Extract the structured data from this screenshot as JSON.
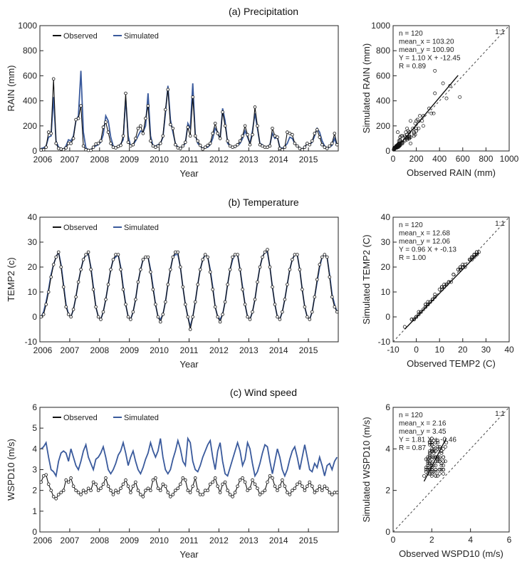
{
  "colors": {
    "observed": "#111111",
    "simulated": "#3a5a9c",
    "frame": "#222222"
  },
  "panels": [
    {
      "key": "a",
      "title": "(a) Precipitation",
      "legend": {
        "observed": "Observed",
        "simulated": "Simulated"
      },
      "ts": {
        "ylabel": "RAIN (mm)",
        "xlabel": "Year",
        "ylim": [
          0,
          1000
        ],
        "yticks": [
          0,
          200,
          400,
          600,
          800,
          1000
        ],
        "xticks": [
          "2006",
          "2007",
          "2008",
          "2009",
          "2010",
          "2011",
          "2012",
          "2013",
          "2014",
          "2015"
        ],
        "observed": [
          8,
          10,
          30,
          150,
          140,
          575,
          60,
          20,
          15,
          10,
          25,
          60,
          60,
          100,
          250,
          260,
          360,
          40,
          10,
          5,
          5,
          30,
          55,
          60,
          80,
          190,
          230,
          150,
          60,
          30,
          25,
          35,
          45,
          120,
          460,
          70,
          40,
          50,
          100,
          180,
          200,
          140,
          260,
          360,
          80,
          40,
          30,
          40,
          60,
          120,
          330,
          490,
          210,
          180,
          50,
          25,
          20,
          40,
          70,
          190,
          120,
          430,
          120,
          80,
          45,
          15,
          30,
          45,
          60,
          140,
          220,
          140,
          100,
          310,
          200,
          80,
          40,
          30,
          35,
          50,
          80,
          120,
          200,
          130,
          50,
          130,
          350,
          200,
          50,
          40,
          30,
          30,
          40,
          180,
          120,
          110,
          20,
          10,
          30,
          150,
          140,
          130,
          60,
          40,
          20,
          10,
          30,
          60,
          50,
          80,
          140,
          170,
          110,
          50,
          30,
          20,
          40,
          60,
          140,
          50
        ],
        "simulated": [
          20,
          25,
          40,
          110,
          120,
          430,
          80,
          30,
          20,
          15,
          40,
          90,
          80,
          120,
          240,
          280,
          640,
          150,
          25,
          10,
          10,
          30,
          40,
          50,
          70,
          130,
          280,
          240,
          110,
          40,
          30,
          40,
          55,
          90,
          420,
          120,
          40,
          50,
          80,
          120,
          160,
          150,
          200,
          460,
          120,
          40,
          40,
          50,
          60,
          110,
          300,
          520,
          250,
          150,
          60,
          30,
          25,
          40,
          60,
          220,
          180,
          540,
          130,
          60,
          40,
          20,
          25,
          30,
          50,
          100,
          180,
          150,
          90,
          340,
          240,
          60,
          40,
          25,
          30,
          45,
          60,
          100,
          160,
          110,
          60,
          160,
          300,
          180,
          60,
          50,
          30,
          35,
          50,
          140,
          100,
          110,
          30,
          20,
          35,
          60,
          110,
          100,
          60,
          40,
          25,
          15,
          30,
          60,
          50,
          70,
          120,
          180,
          150,
          80,
          40,
          25,
          30,
          45,
          100,
          40
        ]
      },
      "sc": {
        "xlabel": "Observed RAIN (mm)",
        "ylabel": "Simulated RAIN (mm)",
        "lim": [
          0,
          1000
        ],
        "ticks": [
          0,
          200,
          400,
          600,
          800,
          1000
        ],
        "stats": [
          "n = 120",
          "mean_x = 103.20",
          "mean_y = 100.90",
          "Y = 1.10 X + -12.45",
          "R = 0.89"
        ],
        "one_to_one": "1:1",
        "fit": {
          "slope": 1.1,
          "intercept": -12.45,
          "x_range": [
            10,
            560
          ]
        }
      }
    },
    {
      "key": "b",
      "title": "(b) Temperature",
      "legend": {
        "observed": "Observed",
        "simulated": "Simulated"
      },
      "ts": {
        "ylabel": "TEMP2 (c)",
        "xlabel": "Year",
        "ylim": [
          -10,
          40
        ],
        "yticks": [
          -10,
          0,
          10,
          20,
          30,
          40
        ],
        "xticks": [
          "2006",
          "2007",
          "2008",
          "2009",
          "2010",
          "2011",
          "2012",
          "2013",
          "2014",
          "2015"
        ],
        "observed": [
          0,
          1,
          5,
          10,
          16,
          21,
          24,
          26,
          20,
          12,
          4,
          1,
          0,
          3,
          8,
          14,
          19,
          23,
          25,
          26,
          19,
          11,
          4,
          0,
          -1,
          2,
          7,
          13,
          19,
          23,
          25,
          25,
          19,
          11,
          5,
          0,
          -1,
          2,
          7,
          14,
          19,
          23,
          24,
          24,
          18,
          11,
          5,
          0,
          -2,
          1,
          6,
          13,
          19,
          24,
          26,
          26,
          20,
          12,
          5,
          0,
          -5,
          0,
          6,
          13,
          19,
          23,
          25,
          24,
          18,
          11,
          4,
          0,
          -2,
          1,
          6,
          13,
          19,
          24,
          25,
          25,
          19,
          11,
          5,
          0,
          -1,
          2,
          7,
          14,
          20,
          24,
          26,
          27,
          20,
          12,
          5,
          0,
          -1,
          2,
          7,
          13,
          19,
          23,
          25,
          25,
          19,
          11,
          4,
          0,
          -1,
          2,
          8,
          15,
          21,
          24,
          25,
          24,
          16,
          8,
          4,
          2
        ],
        "simulated": [
          0,
          2,
          6,
          11,
          17,
          21,
          24,
          26,
          21,
          13,
          5,
          1,
          0,
          3,
          8,
          14,
          19,
          23,
          25,
          25,
          20,
          12,
          4,
          0,
          -1,
          2,
          7,
          13,
          19,
          23,
          24,
          25,
          20,
          12,
          5,
          0,
          -1,
          2,
          7,
          14,
          19,
          23,
          24,
          24,
          19,
          12,
          5,
          0,
          -1,
          1,
          6,
          13,
          19,
          24,
          25,
          25,
          20,
          12,
          5,
          0,
          -4,
          0,
          6,
          13,
          19,
          23,
          25,
          24,
          19,
          12,
          4,
          0,
          -1,
          1,
          6,
          13,
          19,
          23,
          25,
          25,
          19,
          12,
          5,
          0,
          -1,
          2,
          7,
          14,
          20,
          24,
          26,
          26,
          20,
          12,
          5,
          0,
          -1,
          2,
          7,
          13,
          19,
          23,
          25,
          25,
          19,
          11,
          4,
          0,
          -1,
          2,
          8,
          14,
          20,
          24,
          25,
          24,
          17,
          9,
          5,
          2
        ]
      },
      "sc": {
        "xlabel": "Observed TEMP2 (C)",
        "ylabel": "Simulated TEMP2 (C)",
        "lim": [
          -10,
          40
        ],
        "ticks": [
          -10,
          0,
          10,
          20,
          30,
          40
        ],
        "stats": [
          "n = 120",
          "mean_x = 12.68",
          "mean_y = 12.06",
          "Y = 0.96 X + -0.13",
          "R = 1.00"
        ],
        "one_to_one": "1:1",
        "fit": {
          "slope": 0.96,
          "intercept": -0.13,
          "x_range": [
            -5,
            27
          ]
        }
      }
    },
    {
      "key": "c",
      "title": "(c) Wind speed",
      "legend": {
        "observed": "Observed",
        "simulated": "Simulated"
      },
      "ts": {
        "ylabel": "WSPD10 (m/s)",
        "xlabel": "Year",
        "ylim": [
          0,
          6
        ],
        "yticks": [
          0,
          1,
          2,
          3,
          4,
          5,
          6
        ],
        "xticks": [
          "2006",
          "2007",
          "2008",
          "2009",
          "2010",
          "2011",
          "2012",
          "2013",
          "2014",
          "2015"
        ],
        "observed": [
          2.4,
          2.7,
          2.75,
          2.3,
          2.0,
          1.7,
          1.6,
          1.8,
          1.9,
          2.0,
          2.5,
          2.4,
          2.6,
          2.2,
          2.0,
          1.9,
          1.8,
          2.0,
          1.9,
          2.1,
          2.0,
          2.4,
          2.3,
          2.0,
          2.1,
          2.3,
          2.6,
          2.2,
          2.0,
          1.8,
          2.0,
          1.9,
          2.1,
          2.3,
          2.5,
          2.2,
          1.9,
          2.2,
          2.4,
          2.0,
          1.8,
          1.7,
          2.0,
          2.1,
          2.0,
          2.5,
          2.6,
          2.1,
          2.0,
          2.3,
          2.2,
          1.9,
          1.7,
          1.8,
          2.0,
          2.1,
          2.3,
          2.6,
          2.5,
          2.0,
          1.9,
          2.2,
          2.6,
          2.0,
          1.8,
          1.8,
          2.0,
          2.0,
          2.3,
          2.4,
          2.6,
          2.2,
          1.9,
          2.3,
          2.4,
          2.0,
          1.8,
          1.7,
          1.9,
          2.2,
          2.5,
          2.6,
          2.4,
          2.0,
          2.1,
          2.5,
          2.3,
          2.1,
          1.8,
          1.9,
          2.0,
          2.4,
          2.7,
          2.6,
          2.2,
          2.0,
          2.2,
          2.5,
          2.2,
          1.9,
          1.8,
          2.0,
          2.1,
          2.3,
          2.4,
          2.2,
          2.0,
          2.2,
          2.4,
          2.2,
          1.9,
          2.0,
          2.2,
          2.0,
          2.2,
          2.1,
          1.9,
          1.8,
          1.9,
          1.9
        ],
        "simulated": [
          4.0,
          4.1,
          4.3,
          3.6,
          3.0,
          2.9,
          2.7,
          3.4,
          3.8,
          3.9,
          3.8,
          3.4,
          4.0,
          3.6,
          3.2,
          3.0,
          3.4,
          3.9,
          4.2,
          3.6,
          3.3,
          3.0,
          3.5,
          3.6,
          3.8,
          4.1,
          3.6,
          3.0,
          2.8,
          3.0,
          3.3,
          3.7,
          3.9,
          4.3,
          3.8,
          3.2,
          3.6,
          3.9,
          3.4,
          3.0,
          2.8,
          3.1,
          3.5,
          3.8,
          4.3,
          3.9,
          3.6,
          3.9,
          4.5,
          3.6,
          3.0,
          2.8,
          3.0,
          3.5,
          3.9,
          4.4,
          4.0,
          3.4,
          3.2,
          4.5,
          4.3,
          3.4,
          3.0,
          2.9,
          3.2,
          3.6,
          3.9,
          4.2,
          4.4,
          3.6,
          3.0,
          3.9,
          4.3,
          3.4,
          2.8,
          2.7,
          3.1,
          3.5,
          3.9,
          4.3,
          3.9,
          3.2,
          3.5,
          4.3,
          4.0,
          3.3,
          2.7,
          2.9,
          3.3,
          3.8,
          4.2,
          4.1,
          3.4,
          2.8,
          3.4,
          4.0,
          3.6,
          3.0,
          2.7,
          3.0,
          3.5,
          3.9,
          4.1,
          3.6,
          3.0,
          3.6,
          4.2,
          3.6,
          3.0,
          2.9,
          3.3,
          3.1,
          3.6,
          3.2,
          2.7,
          3.2,
          3.3,
          3.0,
          3.4,
          3.6
        ]
      },
      "sc": {
        "xlabel": "Observed WSPD10 (m/s)",
        "ylabel": "Simulated WSPD10 (m/s)",
        "lim": [
          0,
          6
        ],
        "ticks": [
          0,
          2,
          4,
          6
        ],
        "stats": [
          "n = 120",
          "mean_x = 2.16",
          "mean_y = 3.45",
          "Y = 1.81 X + -0.46",
          "R = 0.87"
        ],
        "one_to_one": "1:1",
        "fit": {
          "slope": 1.81,
          "intercept": -0.46,
          "x_range": [
            1.6,
            2.75
          ]
        }
      }
    }
  ],
  "chart_data": [
    {
      "type": "line",
      "title": "(a) Precipitation",
      "xlabel": "Year",
      "ylabel": "RAIN (mm)",
      "ylim": [
        0,
        1000
      ],
      "x": "monthly 2006-2015 (120)",
      "series": [
        {
          "name": "Observed"
        },
        {
          "name": "Simulated"
        }
      ]
    },
    {
      "type": "scatter",
      "title": "(a) Precipitation",
      "xlabel": "Observed RAIN (mm)",
      "ylabel": "Simulated RAIN (mm)",
      "xlim": [
        0,
        1000
      ],
      "ylim": [
        0,
        1000
      ]
    },
    {
      "type": "line",
      "title": "(b) Temperature",
      "xlabel": "Year",
      "ylabel": "TEMP2 (c)",
      "ylim": [
        -10,
        40
      ],
      "series": [
        {
          "name": "Observed"
        },
        {
          "name": "Simulated"
        }
      ]
    },
    {
      "type": "scatter",
      "title": "(b) Temperature",
      "xlabel": "Observed TEMP2 (C)",
      "ylabel": "Simulated TEMP2 (C)",
      "xlim": [
        -10,
        40
      ],
      "ylim": [
        -10,
        40
      ]
    },
    {
      "type": "line",
      "title": "(c) Wind speed",
      "xlabel": "Year",
      "ylabel": "WSPD10 (m/s)",
      "ylim": [
        0,
        6
      ],
      "series": [
        {
          "name": "Observed"
        },
        {
          "name": "Simulated"
        }
      ]
    },
    {
      "type": "scatter",
      "title": "(c) Wind speed",
      "xlabel": "Observed WSPD10 (m/s)",
      "ylabel": "Simulated WSPD10 (m/s)",
      "xlim": [
        0,
        6
      ],
      "ylim": [
        0,
        6
      ]
    }
  ]
}
